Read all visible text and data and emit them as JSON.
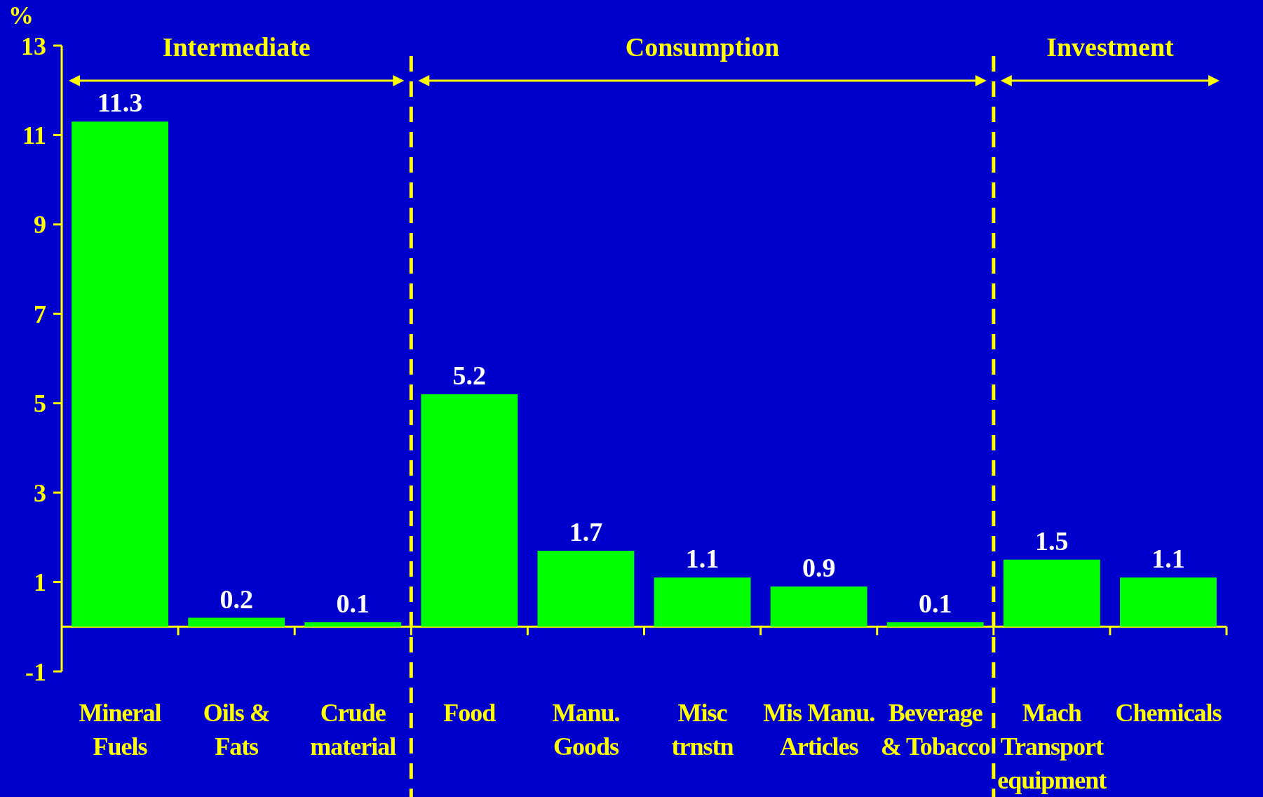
{
  "chart_data": {
    "type": "bar",
    "ylabel": "%",
    "categories": [
      "Mineral Fuels",
      "Oils & Fats",
      "Crude material",
      "Food",
      "Manu. Goods",
      "Misc trnstn",
      "Mis Manu. Articles",
      "Beverage & Tobacco",
      "Mach Transport equipment",
      "Chemicals"
    ],
    "values": [
      11.3,
      0.2,
      0.1,
      5.2,
      1.7,
      1.1,
      0.9,
      0.1,
      1.5,
      1.1
    ],
    "color": "#00ff00",
    "ylim": [
      -1,
      13
    ],
    "yticks": [
      -1,
      1,
      3,
      5,
      7,
      9,
      11,
      13
    ],
    "data_labels": true,
    "ref_lines": [
      {
        "axis": "y",
        "value": 0,
        "color": "#ffff00"
      }
    ],
    "annotations": [
      "Intermediate",
      "Consumption",
      "Investment"
    ]
  }
}
